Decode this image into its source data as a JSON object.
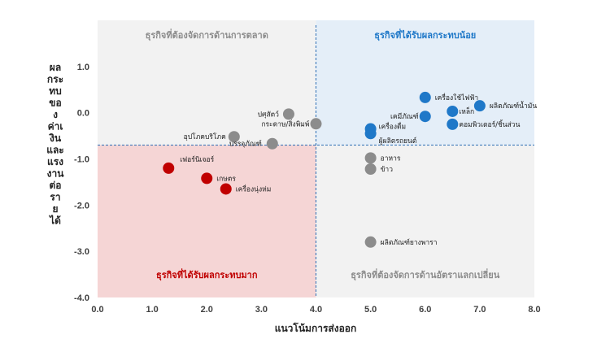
{
  "chart_data": {
    "type": "scatter",
    "xlabel": "แนวโน้มการส่งออก",
    "ylabel_lines": [
      "ผล",
      "กระ",
      "ทบ",
      "ขอ",
      "ง",
      "ค่าเ",
      "งิน",
      "และ",
      "แรง",
      "งาน",
      "ต่อ",
      "รา",
      "ย",
      "ได้"
    ],
    "xlim": [
      0,
      8
    ],
    "ylim": [
      -4,
      2
    ],
    "xticks": [
      "0.0",
      "1.0",
      "2.0",
      "3.0",
      "4.0",
      "5.0",
      "6.0",
      "7.0",
      "8.0"
    ],
    "yticks": [
      "1.0",
      "0.0",
      "-1.0",
      "-2.0",
      "-3.0",
      "-4.0"
    ],
    "reference_lines": {
      "x": 4.0,
      "y": -0.7
    },
    "quadrants": {
      "top_left": {
        "label": "ธุรกิจที่ต้องจัดการด้านการตลาด",
        "color": "#8c8c8c",
        "fill": "#f2f2f2"
      },
      "top_right": {
        "label": "ธุรกิจที่ได้รับผลกระทบน้อย",
        "color": "#1f78c8",
        "fill": "#e4eef8"
      },
      "bottom_left": {
        "label": "ธุรกิจที่ได้รับผลกระทบมาก",
        "color": "#c00000",
        "fill": "#f5d5d5"
      },
      "bottom_right": {
        "label": "ธุรกิจที่ต้องจัดการด้านอัตราแลกเปลี่ยน",
        "color": "#8c8c8c",
        "fill": "#f2f2f2"
      }
    },
    "series": [
      {
        "color": "#1f78c8",
        "points": [
          {
            "label": "เครื่องใช้ไฟฟ้า",
            "x": 6.0,
            "y": 0.33
          },
          {
            "label": "ผลิตภัณฑ์น้ำมัน",
            "x": 7.0,
            "y": 0.15
          },
          {
            "label": "เหล็ก",
            "x": 6.5,
            "y": 0.03
          },
          {
            "label": "เคมีภัณฑ์",
            "x": 6.0,
            "y": -0.08
          },
          {
            "label": "คอมพิวเตอร์/ชิ้นส่วน",
            "x": 6.5,
            "y": -0.25
          },
          {
            "label": "เครื่องดื่ม",
            "x": 5.0,
            "y": -0.35
          },
          {
            "label": "ผู้ผลิตรถยนต์",
            "x": 5.0,
            "y": -0.45
          }
        ]
      },
      {
        "color": "#8c8c8c",
        "points": [
          {
            "label": "ปศุสัตว์",
            "x": 3.5,
            "y": -0.03
          },
          {
            "label": "กระดาษ/สิ่งพิมพ์",
            "x": 4.0,
            "y": -0.24
          },
          {
            "label": "อุปโภคบริโภค",
            "x": 2.5,
            "y": -0.52
          },
          {
            "label": "บรรจุภัณฑ์",
            "x": 3.2,
            "y": -0.67
          },
          {
            "label": "อาหาร",
            "x": 5.0,
            "y": -0.98
          },
          {
            "label": "ข้าว",
            "x": 5.0,
            "y": -1.22
          },
          {
            "label": "ผลิตภัณฑ์ยางพารา",
            "x": 5.0,
            "y": -2.8
          }
        ]
      },
      {
        "color": "#c00000",
        "points": [
          {
            "label": "เฟอร์นิเจอร์",
            "x": 1.3,
            "y": -1.2
          },
          {
            "label": "เกษตร",
            "x": 2.0,
            "y": -1.42
          },
          {
            "label": "เครื่องนุ่งห่ม",
            "x": 2.35,
            "y": -1.65
          }
        ]
      }
    ]
  }
}
